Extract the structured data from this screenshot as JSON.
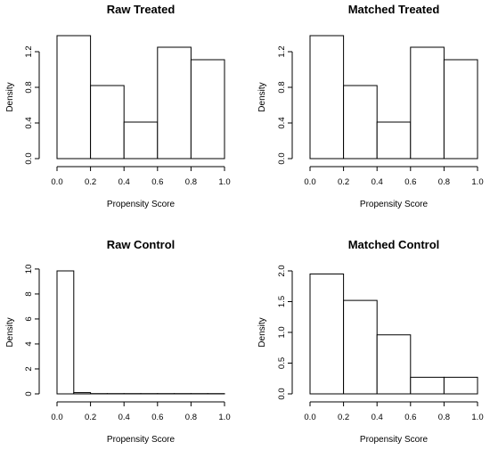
{
  "chart_data": [
    {
      "type": "bar",
      "title": "Raw Treated",
      "xlabel": "Propensity Score",
      "ylabel": "Density",
      "bin_edges": [
        0.0,
        0.2,
        0.4,
        0.6,
        0.8,
        1.0
      ],
      "values": [
        1.38,
        0.82,
        0.41,
        1.25,
        1.11
      ],
      "xlim": [
        0.0,
        1.0
      ],
      "ylim": [
        0.0,
        1.38
      ],
      "xticks": [
        "0.0",
        "0.2",
        "0.4",
        "0.6",
        "0.8",
        "1.0"
      ],
      "yticks": [
        "0.0",
        "0.4",
        "0.8",
        "1.2"
      ],
      "ytick_values": [
        0.0,
        0.4,
        0.8,
        1.2
      ],
      "grid": false
    },
    {
      "type": "bar",
      "title": "Matched Treated",
      "xlabel": "Propensity Score",
      "ylabel": "Density",
      "bin_edges": [
        0.0,
        0.2,
        0.4,
        0.6,
        0.8,
        1.0
      ],
      "values": [
        1.38,
        0.82,
        0.41,
        1.25,
        1.11
      ],
      "xlim": [
        0.0,
        1.0
      ],
      "ylim": [
        0.0,
        1.38
      ],
      "xticks": [
        "0.0",
        "0.2",
        "0.4",
        "0.6",
        "0.8",
        "1.0"
      ],
      "yticks": [
        "0.0",
        "0.4",
        "0.8",
        "1.2"
      ],
      "ytick_values": [
        0.0,
        0.4,
        0.8,
        1.2
      ],
      "grid": false
    },
    {
      "type": "bar",
      "title": "Raw Control",
      "xlabel": "Propensity Score",
      "ylabel": "Density",
      "bin_edges": [
        0.0,
        0.1,
        0.2,
        0.3,
        0.4,
        0.5,
        0.6,
        0.7,
        0.8,
        0.9,
        1.0
      ],
      "values": [
        9.85,
        0.1,
        0.02,
        0.02,
        0.02,
        0.02,
        0.02,
        0.02,
        0.02,
        0.02
      ],
      "xlim": [
        0.0,
        1.0
      ],
      "ylim": [
        0.0,
        9.85
      ],
      "xticks": [
        "0.0",
        "0.2",
        "0.4",
        "0.6",
        "0.8",
        "1.0"
      ],
      "yticks": [
        "0",
        "2",
        "4",
        "6",
        "8",
        "10"
      ],
      "ytick_values": [
        0,
        2,
        4,
        6,
        8,
        10
      ],
      "grid": false
    },
    {
      "type": "bar",
      "title": "Matched Control",
      "xlabel": "Propensity Score",
      "ylabel": "Density",
      "bin_edges": [
        0.0,
        0.2,
        0.4,
        0.6,
        0.8,
        1.0
      ],
      "values": [
        1.95,
        1.52,
        0.96,
        0.27,
        0.27
      ],
      "xlim": [
        0.0,
        1.0
      ],
      "ylim": [
        0.0,
        2.0
      ],
      "xticks": [
        "0.0",
        "0.2",
        "0.4",
        "0.6",
        "0.8",
        "1.0"
      ],
      "yticks": [
        "0.0",
        "0.5",
        "1.0",
        "1.5",
        "2.0"
      ],
      "ytick_values": [
        0.0,
        0.5,
        1.0,
        1.5,
        2.0
      ],
      "grid": false
    }
  ]
}
